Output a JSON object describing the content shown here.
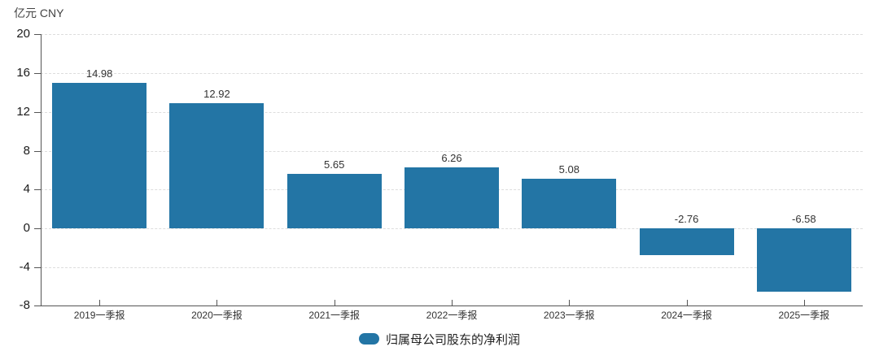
{
  "header": {
    "unit_label": "亿元 CNY"
  },
  "colors": {
    "bar": "#2375a5",
    "grid": "#dddddd",
    "axis": "#555555",
    "tick_text": "#1a1a1a",
    "label_text": "#333333"
  },
  "legend": {
    "items": [
      {
        "label": "归属母公司股东的净利润",
        "swatch_color": "#2375a5"
      }
    ]
  },
  "chart_data": {
    "type": "bar",
    "title": "亿元 CNY",
    "categories": [
      "2019一季报",
      "2020一季报",
      "2021一季报",
      "2022一季报",
      "2023一季报",
      "2024一季报",
      "2025一季报"
    ],
    "series": [
      {
        "name": "归属母公司股东的净利润",
        "values": [
          14.98,
          12.92,
          5.65,
          6.26,
          5.08,
          -2.76,
          -6.58
        ]
      }
    ],
    "xlabel": "",
    "ylabel": "亿元 CNY",
    "ylim": [
      -8,
      20
    ],
    "yticks": [
      20,
      16,
      12,
      8,
      4,
      0,
      -4,
      -8
    ],
    "grid": true,
    "gridline_style": "dashed",
    "legend_position": "bottom"
  }
}
